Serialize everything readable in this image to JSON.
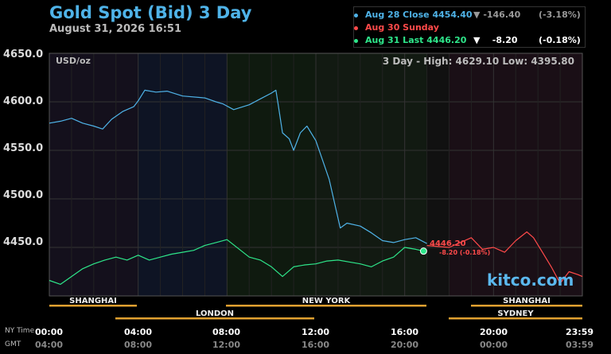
{
  "header": {
    "title": "Gold Spot (Bid) 3 Day",
    "datetime": "August 31, 2026 16:51"
  },
  "legend": [
    {
      "label": "Aug 28 Close",
      "value": "4454.40",
      "arrow": "▼",
      "change": "-146.40",
      "pct": "(-3.18%)",
      "color": "#4fb3e8",
      "change_color": "#999999"
    },
    {
      "label": "Aug 30 Sunday",
      "value": "",
      "arrow": "",
      "change": "",
      "pct": "",
      "color": "#ff4a4a",
      "change_color": "#ffffff"
    },
    {
      "label": "Aug 31 Last",
      "value": "4446.20",
      "arrow": "▼",
      "change": "-8.20",
      "pct": "(-0.18%)",
      "color": "#2ee68a",
      "change_color": "#ffffff"
    }
  ],
  "high_low": "3 Day - High: 4629.10   Low: 4395.80",
  "watermark": "kitco.com",
  "last_marker": {
    "price": "4446.20",
    "change": "-8.20 (-0.18%)"
  },
  "axis": {
    "tz_top": "NY Time",
    "tz_bottom": "GMT",
    "ny_ticks": [
      "00:00",
      "04:00",
      "08:00",
      "12:00",
      "16:00",
      "20:00",
      "23:59"
    ],
    "gmt_ticks": [
      "04:00",
      "08:00",
      "12:00",
      "16:00",
      "20:00",
      "00:00",
      "03:59"
    ]
  },
  "sessions_top": [
    "SHANGHAI",
    "NEW YORK",
    "SHANGHAI"
  ],
  "sessions_bottom": [
    "LONDON",
    "SYDNEY"
  ],
  "chart_data": {
    "type": "line",
    "ylabel": "USD/oz",
    "ylim": [
      4400,
      4650
    ],
    "yticks": [
      4450.0,
      4500.0,
      4550.0,
      4600.0,
      4650.0
    ],
    "xlim": [
      0,
      24
    ],
    "series": [
      {
        "name": "Aug 28 Close",
        "color": "#4fb3e8",
        "points": [
          [
            0,
            4578
          ],
          [
            0.5,
            4580
          ],
          [
            1.0,
            4583
          ],
          [
            1.5,
            4578
          ],
          [
            2.0,
            4575
          ],
          [
            2.4,
            4572
          ],
          [
            2.8,
            4582
          ],
          [
            3.3,
            4590
          ],
          [
            3.8,
            4595
          ],
          [
            4.0,
            4601
          ],
          [
            4.3,
            4612
          ],
          [
            4.8,
            4610
          ],
          [
            5.3,
            4611
          ],
          [
            6.0,
            4606
          ],
          [
            7.0,
            4604
          ],
          [
            7.5,
            4600
          ],
          [
            7.8,
            4598
          ],
          [
            8.3,
            4592
          ],
          [
            9.0,
            4597
          ],
          [
            9.5,
            4603
          ],
          [
            10.0,
            4609
          ],
          [
            10.2,
            4612
          ],
          [
            10.3,
            4598
          ],
          [
            10.5,
            4568
          ],
          [
            10.8,
            4562
          ],
          [
            11.0,
            4550
          ],
          [
            11.3,
            4568
          ],
          [
            11.6,
            4575
          ],
          [
            12.0,
            4560
          ],
          [
            12.3,
            4540
          ],
          [
            12.6,
            4520
          ],
          [
            12.9,
            4490
          ],
          [
            13.1,
            4470
          ],
          [
            13.4,
            4475
          ],
          [
            14.0,
            4472
          ],
          [
            14.5,
            4465
          ],
          [
            15.0,
            4457
          ],
          [
            15.5,
            4455
          ],
          [
            16.0,
            4458
          ],
          [
            16.5,
            4460
          ],
          [
            17.0,
            4454
          ]
        ]
      },
      {
        "name": "Aug 30 Sunday",
        "color": "#ff4a4a",
        "points": [
          [
            17.0,
            4452
          ],
          [
            18.0,
            4450
          ],
          [
            18.5,
            4455
          ],
          [
            19.0,
            4460
          ],
          [
            19.5,
            4448
          ],
          [
            20.0,
            4450
          ],
          [
            20.5,
            4445
          ],
          [
            21.0,
            4457
          ],
          [
            21.5,
            4466
          ],
          [
            21.8,
            4460
          ],
          [
            22.2,
            4445
          ],
          [
            22.6,
            4430
          ],
          [
            23.0,
            4413
          ],
          [
            23.4,
            4425
          ],
          [
            23.8,
            4422
          ],
          [
            24.0,
            4420
          ]
        ]
      },
      {
        "name": "Aug 31 Last",
        "color": "#2ee68a",
        "points": [
          [
            0,
            4416
          ],
          [
            0.5,
            4412
          ],
          [
            1.0,
            4420
          ],
          [
            1.5,
            4428
          ],
          [
            2.0,
            4433
          ],
          [
            2.5,
            4437
          ],
          [
            3.0,
            4440
          ],
          [
            3.5,
            4437
          ],
          [
            4.0,
            4442
          ],
          [
            4.5,
            4437
          ],
          [
            5.0,
            4440
          ],
          [
            5.5,
            4443
          ],
          [
            6.0,
            4445
          ],
          [
            6.5,
            4447
          ],
          [
            7.0,
            4452
          ],
          [
            7.5,
            4455
          ],
          [
            8.0,
            4458
          ],
          [
            8.5,
            4449
          ],
          [
            9.0,
            4440
          ],
          [
            9.5,
            4437
          ],
          [
            10.0,
            4430
          ],
          [
            10.5,
            4420
          ],
          [
            11.0,
            4430
          ],
          [
            11.5,
            4432
          ],
          [
            12.0,
            4433
          ],
          [
            12.5,
            4436
          ],
          [
            13.0,
            4437
          ],
          [
            13.5,
            4435
          ],
          [
            14.0,
            4433
          ],
          [
            14.5,
            4430
          ],
          [
            15.0,
            4436
          ],
          [
            15.5,
            4440
          ],
          [
            16.0,
            4450
          ],
          [
            16.5,
            4448
          ],
          [
            16.85,
            4446.2
          ]
        ]
      }
    ]
  }
}
